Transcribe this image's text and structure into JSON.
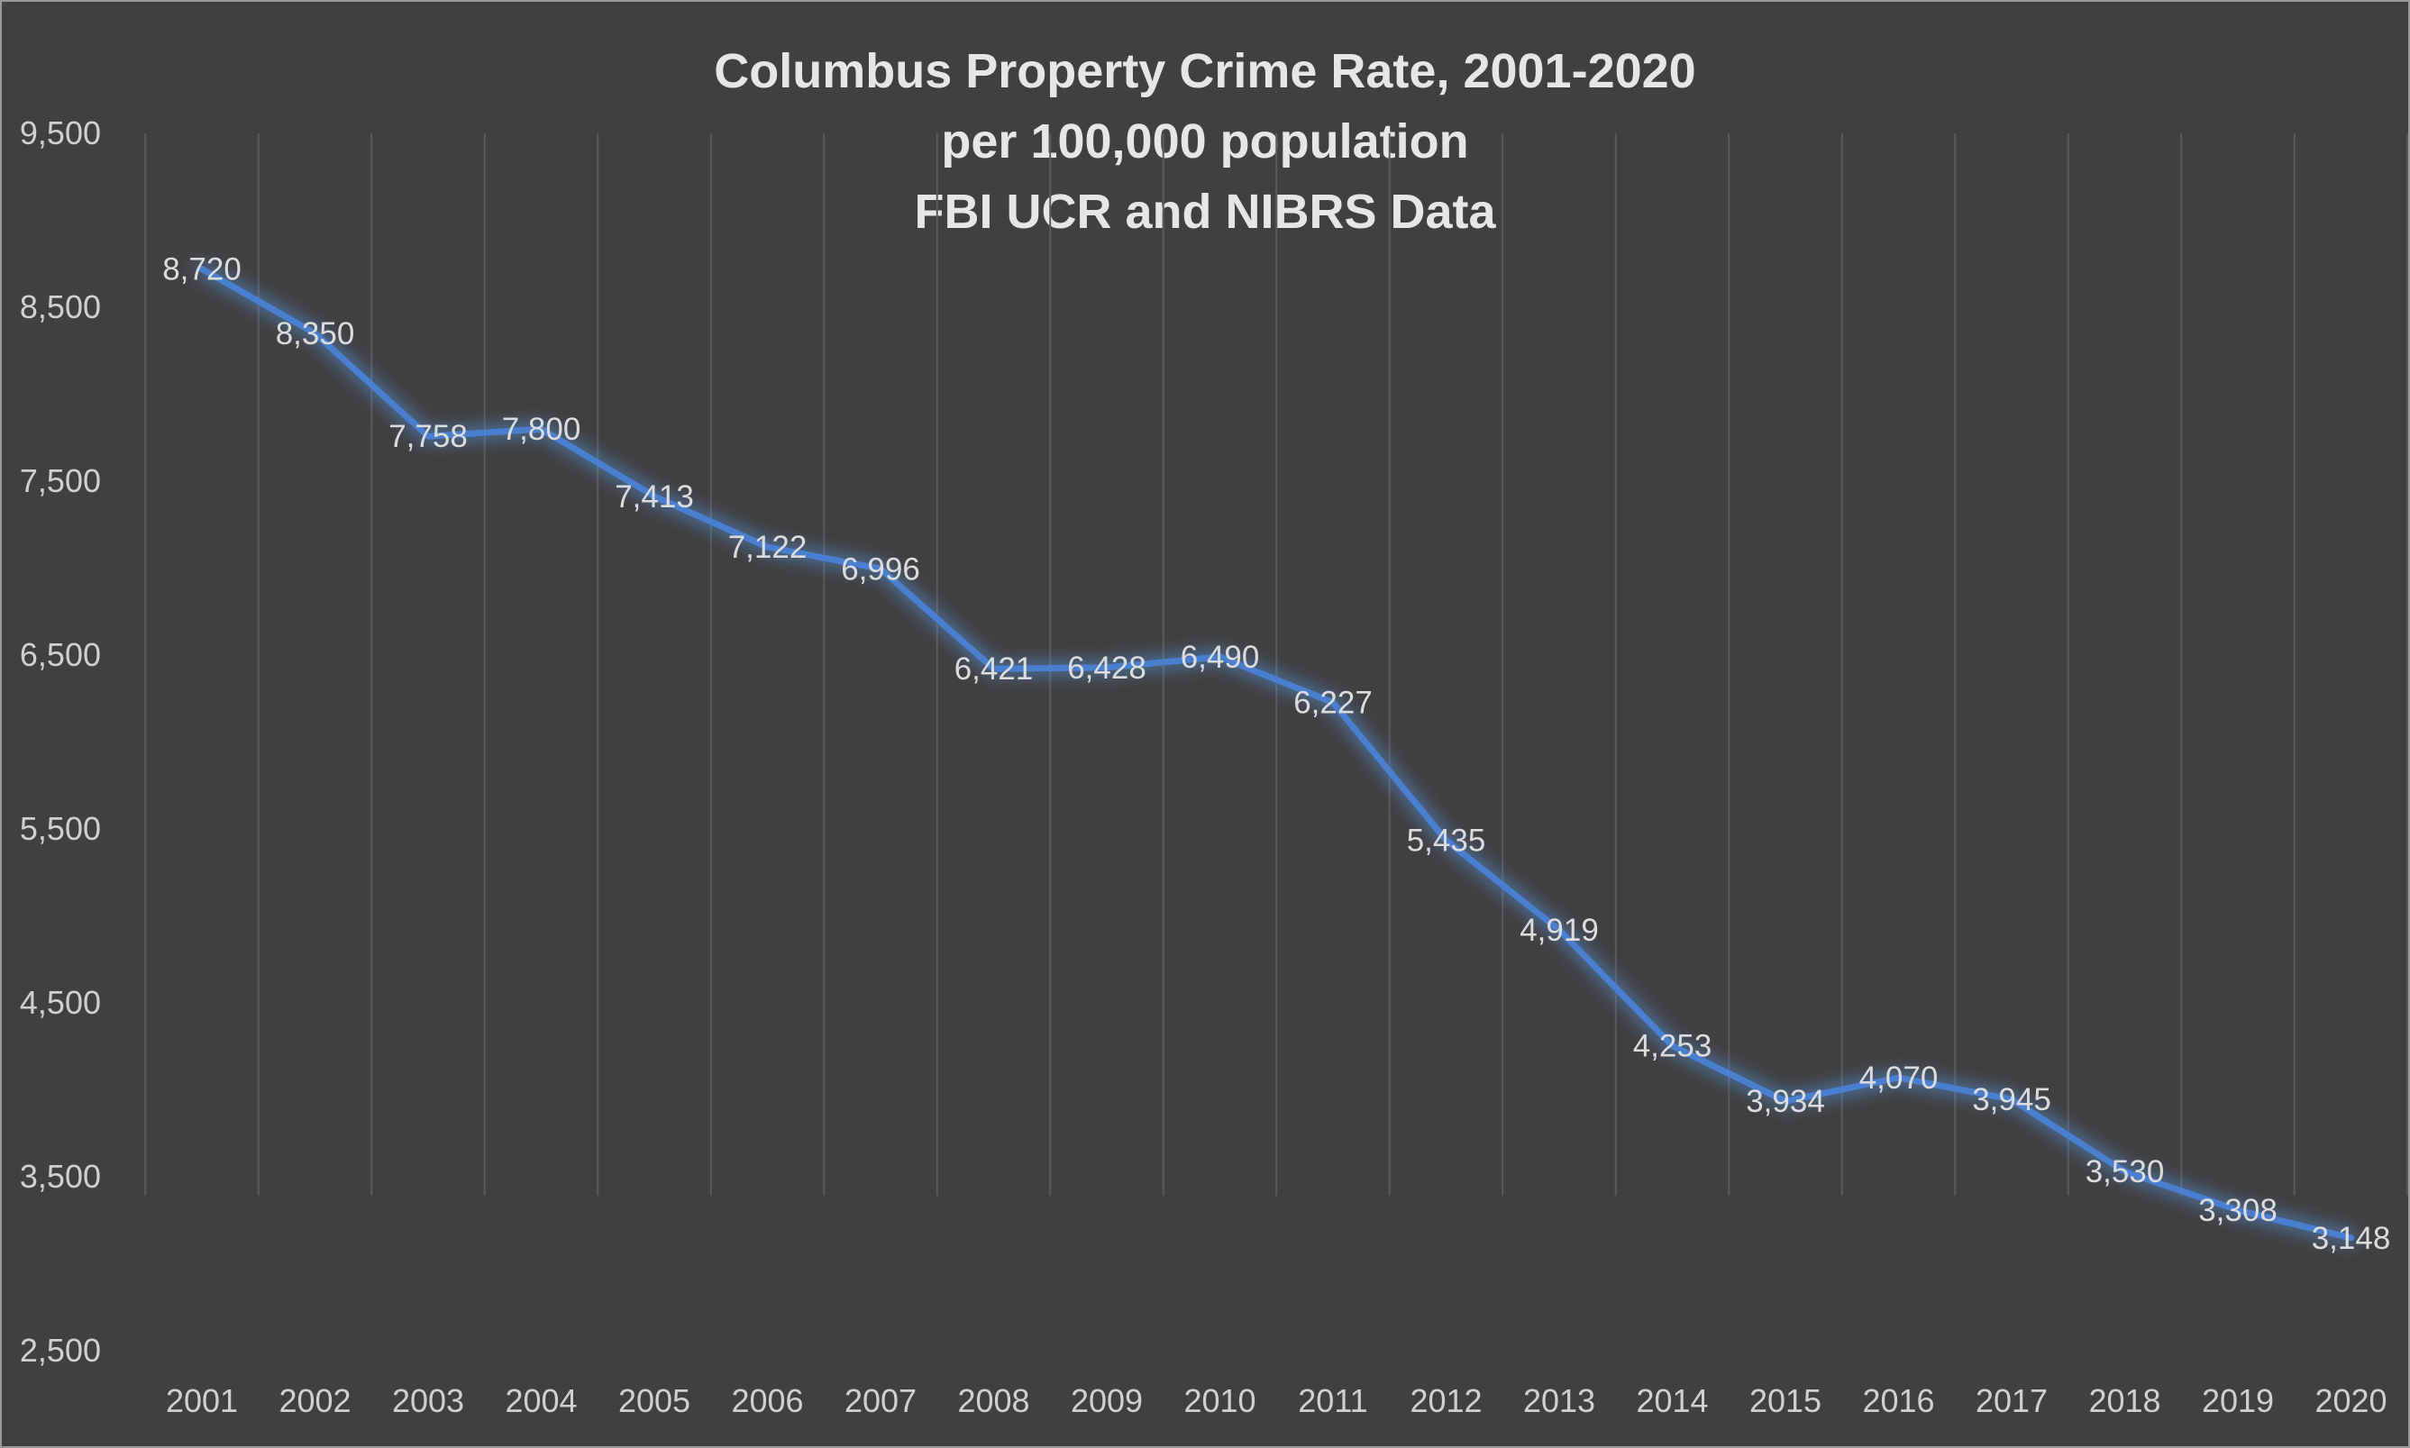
{
  "chart_data": {
    "type": "line",
    "title_lines": [
      "Columbus Property Crime Rate, 2001-2020",
      "per 100,000 population",
      "FBI UCR and NIBRS Data"
    ],
    "x": [
      "2001",
      "2002",
      "2003",
      "2004",
      "2005",
      "2006",
      "2007",
      "2008",
      "2009",
      "2010",
      "2011",
      "2012",
      "2013",
      "2014",
      "2015",
      "2016",
      "2017",
      "2018",
      "2019",
      "2020"
    ],
    "values": [
      8720,
      8350,
      7758,
      7800,
      7413,
      7122,
      6996,
      6421,
      6428,
      6490,
      6227,
      5435,
      4919,
      4253,
      3934,
      4070,
      3945,
      3530,
      3308,
      3148
    ],
    "data_labels": [
      "8,720",
      "8,350",
      "7,758",
      "7,800",
      "7,413",
      "7,122",
      "6,996",
      "6,421",
      "6,428",
      "6,490",
      "6,227",
      "5,435",
      "4,919",
      "4,253",
      "3,934",
      "4,070",
      "3,945",
      "3,530",
      "3,308",
      "3,148"
    ],
    "ylim": [
      2500,
      9500
    ],
    "y_ticks": [
      "2,500",
      "3,500",
      "4,500",
      "5,500",
      "6,500",
      "7,500",
      "8,500",
      "9,500"
    ],
    "y_tick_values": [
      2500,
      3500,
      4500,
      5500,
      6500,
      7500,
      8500,
      9500
    ],
    "xlabel": "",
    "ylabel": "",
    "grid": "vertical",
    "legend": "none",
    "colors": {
      "background": "#404040",
      "line": "#4a7fd0",
      "glow": "#5b9bef",
      "gridline": "#5a5a5a",
      "text": "#d9d9d9"
    }
  }
}
